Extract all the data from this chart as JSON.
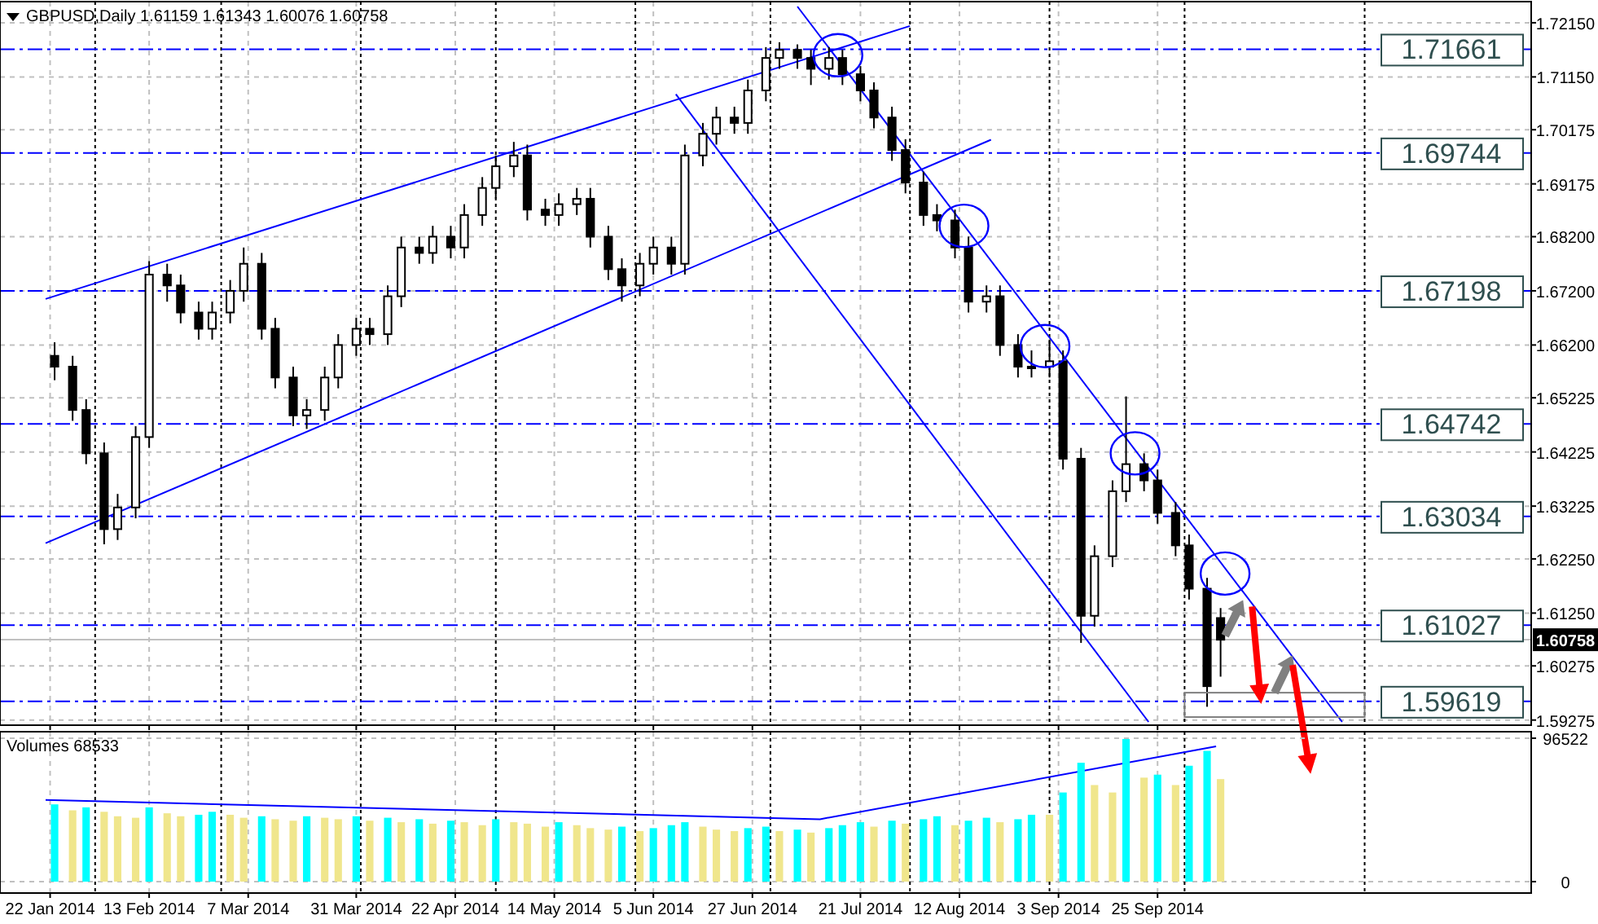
{
  "chart_data": [
    {
      "type": "candlestick",
      "title": "GBPUSD,Daily 1.61159 1.61343 1.60076 1.60758",
      "color": "#000000",
      "grid": true,
      "tick_labels": "y",
      "xlim": [
        "2014-01-21",
        "2014-12-17"
      ],
      "ylim": [
        1.5918,
        1.7254
      ],
      "xticks": [
        {
          "value": "2014-01-22",
          "label": null
        },
        {
          "value": "2014-02-13",
          "label": null
        },
        {
          "value": "2014-03-07",
          "label": null
        },
        {
          "value": "2014-03-31",
          "label": null
        },
        {
          "value": "2014-04-22",
          "label": null
        },
        {
          "value": "2014-05-14",
          "label": null
        },
        {
          "value": "2014-06-05",
          "label": null
        },
        {
          "value": "2014-06-27",
          "label": null
        },
        {
          "value": "2014-07-21",
          "label": null
        },
        {
          "value": "2014-08-12",
          "label": null
        },
        {
          "value": "2014-09-03",
          "label": null
        },
        {
          "value": "2014-09-25",
          "label": null
        }
      ],
      "yticks": [
        {
          "value": 1.7215,
          "label": "1.72150"
        },
        {
          "value": 1.7115,
          "label": "1.71150"
        },
        {
          "value": 1.70175,
          "label": "1.70175"
        },
        {
          "value": 1.69175,
          "label": "1.69175"
        },
        {
          "value": 1.682,
          "label": "1.68200"
        },
        {
          "value": 1.672,
          "label": "1.67200"
        },
        {
          "value": 1.662,
          "label": "1.66200"
        },
        {
          "value": 1.65225,
          "label": "1.65225"
        },
        {
          "value": 1.64225,
          "label": "1.64225"
        },
        {
          "value": 1.63225,
          "label": "1.63225"
        },
        {
          "value": 1.6225,
          "label": "1.62250"
        },
        {
          "value": 1.6125,
          "label": "1.61250"
        },
        {
          "value": 1.60275,
          "label": "1.60275"
        },
        {
          "value": 1.59275,
          "label": "1.59275"
        }
      ],
      "x": [
        "2014-01-23",
        "2014-01-27",
        "2014-01-30",
        "2014-02-03",
        "2014-02-06",
        "2014-02-10",
        "2014-02-13",
        "2014-02-17",
        "2014-02-20",
        "2014-02-24",
        "2014-02-27",
        "2014-03-03",
        "2014-03-06",
        "2014-03-10",
        "2014-03-13",
        "2014-03-17",
        "2014-03-20",
        "2014-03-24",
        "2014-03-27",
        "2014-03-31",
        "2014-04-03",
        "2014-04-07",
        "2014-04-10",
        "2014-04-14",
        "2014-04-17",
        "2014-04-21",
        "2014-04-24",
        "2014-04-28",
        "2014-05-01",
        "2014-05-05",
        "2014-05-08",
        "2014-05-12",
        "2014-05-15",
        "2014-05-19",
        "2014-05-22",
        "2014-05-26",
        "2014-05-29",
        "2014-06-02",
        "2014-06-05",
        "2014-06-09",
        "2014-06-12",
        "2014-06-16",
        "2014-06-19",
        "2014-06-23",
        "2014-06-26",
        "2014-06-30",
        "2014-07-03",
        "2014-07-07",
        "2014-07-10",
        "2014-07-14",
        "2014-07-17",
        "2014-07-21",
        "2014-07-24",
        "2014-07-28",
        "2014-07-31",
        "2014-08-04",
        "2014-08-07",
        "2014-08-11",
        "2014-08-14",
        "2014-08-18",
        "2014-08-21",
        "2014-08-25",
        "2014-08-28",
        "2014-09-01",
        "2014-09-04",
        "2014-09-08",
        "2014-09-11",
        "2014-09-15",
        "2014-09-18",
        "2014-09-22",
        "2014-09-25",
        "2014-09-29",
        "2014-10-02",
        "2014-10-06",
        "2014-10-09"
      ],
      "ohlc": [
        [
          1.66,
          1.6625,
          1.6555,
          1.658
        ],
        [
          1.658,
          1.66,
          1.648,
          1.65
        ],
        [
          1.65,
          1.652,
          1.64,
          1.642
        ],
        [
          1.642,
          1.644,
          1.6252,
          1.628
        ],
        [
          1.628,
          1.6345,
          1.626,
          1.632
        ],
        [
          1.632,
          1.647,
          1.63,
          1.645
        ],
        [
          1.645,
          1.6775,
          1.643,
          1.675
        ],
        [
          1.675,
          1.677,
          1.67,
          1.673
        ],
        [
          1.673,
          1.675,
          1.666,
          1.668
        ],
        [
          1.668,
          1.67,
          1.663,
          1.665
        ],
        [
          1.665,
          1.67,
          1.663,
          1.668
        ],
        [
          1.668,
          1.674,
          1.666,
          1.672
        ],
        [
          1.672,
          1.68,
          1.67,
          1.677
        ],
        [
          1.677,
          1.679,
          1.663,
          1.665
        ],
        [
          1.665,
          1.667,
          1.654,
          1.656
        ],
        [
          1.656,
          1.658,
          1.647,
          1.649
        ],
        [
          1.649,
          1.652,
          1.6465,
          1.65
        ],
        [
          1.65,
          1.658,
          1.648,
          1.656
        ],
        [
          1.656,
          1.664,
          1.654,
          1.662
        ],
        [
          1.662,
          1.667,
          1.66,
          1.665
        ],
        [
          1.665,
          1.667,
          1.662,
          1.664
        ],
        [
          1.664,
          1.673,
          1.662,
          1.671
        ],
        [
          1.671,
          1.682,
          1.669,
          1.68
        ],
        [
          1.68,
          1.682,
          1.677,
          1.679
        ],
        [
          1.679,
          1.684,
          1.677,
          1.682
        ],
        [
          1.682,
          1.684,
          1.678,
          1.68
        ],
        [
          1.68,
          1.688,
          1.678,
          1.686
        ],
        [
          1.686,
          1.693,
          1.684,
          1.691
        ],
        [
          1.691,
          1.697,
          1.689,
          1.695
        ],
        [
          1.695,
          1.6995,
          1.693,
          1.697
        ],
        [
          1.697,
          1.699,
          1.685,
          1.687
        ],
        [
          1.687,
          1.689,
          1.684,
          1.686
        ],
        [
          1.686,
          1.69,
          1.684,
          1.688
        ],
        [
          1.688,
          1.691,
          1.686,
          1.689
        ],
        [
          1.689,
          1.691,
          1.68,
          1.682
        ],
        [
          1.682,
          1.684,
          1.674,
          1.676
        ],
        [
          1.676,
          1.678,
          1.67,
          1.673
        ],
        [
          1.673,
          1.679,
          1.671,
          1.677
        ],
        [
          1.677,
          1.682,
          1.675,
          1.68
        ],
        [
          1.68,
          1.682,
          1.675,
          1.677
        ],
        [
          1.677,
          1.699,
          1.675,
          1.697
        ],
        [
          1.697,
          1.703,
          1.695,
          1.701
        ],
        [
          1.701,
          1.706,
          1.699,
          1.704
        ],
        [
          1.704,
          1.706,
          1.701,
          1.703
        ],
        [
          1.703,
          1.711,
          1.701,
          1.709
        ],
        [
          1.709,
          1.717,
          1.707,
          1.715
        ],
        [
          1.715,
          1.7179,
          1.713,
          1.7165
        ],
        [
          1.7165,
          1.7175,
          1.713,
          1.715
        ],
        [
          1.715,
          1.7165,
          1.71,
          1.713
        ],
        [
          1.713,
          1.717,
          1.711,
          1.715
        ],
        [
          1.715,
          1.7165,
          1.71,
          1.712
        ],
        [
          1.712,
          1.7135,
          1.707,
          1.709
        ],
        [
          1.709,
          1.7105,
          1.702,
          1.704
        ],
        [
          1.704,
          1.706,
          1.696,
          1.698
        ],
        [
          1.698,
          1.7,
          1.69,
          1.692
        ],
        [
          1.692,
          1.694,
          1.684,
          1.686
        ],
        [
          1.686,
          1.688,
          1.683,
          1.685
        ],
        [
          1.685,
          1.687,
          1.678,
          1.68
        ],
        [
          1.68,
          1.682,
          1.668,
          1.67
        ],
        [
          1.67,
          1.673,
          1.668,
          1.671
        ],
        [
          1.671,
          1.673,
          1.66,
          1.662
        ],
        [
          1.662,
          1.664,
          1.656,
          1.658
        ],
        [
          1.658,
          1.661,
          1.656,
          1.658
        ],
        [
          1.658,
          1.663,
          1.656,
          1.659
        ],
        [
          1.659,
          1.661,
          1.639,
          1.641
        ],
        [
          1.641,
          1.643,
          1.607,
          1.612
        ],
        [
          1.612,
          1.625,
          1.61,
          1.623
        ],
        [
          1.623,
          1.637,
          1.621,
          1.635
        ],
        [
          1.635,
          1.6525,
          1.633,
          1.64
        ],
        [
          1.64,
          1.642,
          1.635,
          1.637
        ],
        [
          1.637,
          1.639,
          1.629,
          1.631
        ],
        [
          1.631,
          1.633,
          1.623,
          1.625
        ],
        [
          1.625,
          1.627,
          1.615,
          1.617
        ],
        [
          1.617,
          1.619,
          1.5952,
          1.599
        ],
        [
          1.61159,
          1.61343,
          1.60076,
          1.60758
        ]
      ],
      "series": [
        {
          "type": "line",
          "color": "#0000ff",
          "x": [
            "2014-01-21",
            "2014-08-01"
          ],
          "values": [
            1.6705,
            1.7209
          ]
        },
        {
          "type": "line",
          "color": "#0000ff",
          "x": [
            "2014-01-21",
            "2014-08-19"
          ],
          "values": [
            1.6254,
            1.6999
          ]
        },
        {
          "type": "line",
          "color": "#0000ff",
          "x": [
            "2014-07-07",
            "2014-11-05"
          ],
          "values": [
            1.7245,
            1.5924
          ]
        },
        {
          "type": "line",
          "color": "#0000ff",
          "x": [
            "2014-06-10",
            "2014-09-23"
          ],
          "values": [
            1.7083,
            1.5924
          ]
        }
      ],
      "ref_lines": [
        {
          "axis": "y",
          "value": 1.71661,
          "label": "1.71661",
          "color": "#0000ff",
          "line_style": "dashed"
        },
        {
          "axis": "y",
          "value": 1.69744,
          "label": "1.69744",
          "color": "#0000ff",
          "line_style": "dashed"
        },
        {
          "axis": "y",
          "value": 1.67198,
          "label": "1.67198",
          "color": "#0000ff",
          "line_style": "dashed"
        },
        {
          "axis": "y",
          "value": 1.64742,
          "label": "1.64742",
          "color": "#0000ff",
          "line_style": "dashed"
        },
        {
          "axis": "y",
          "value": 1.63034,
          "label": "1.63034",
          "color": "#0000ff",
          "line_style": "dashed"
        },
        {
          "axis": "y",
          "value": 1.61027,
          "label": "1.61027",
          "color": "#0000ff",
          "line_style": "dashed"
        },
        {
          "axis": "y",
          "value": 1.59619,
          "label": "1.59619",
          "color": "#0000ff",
          "line_style": "dashed"
        },
        {
          "axis": "y",
          "value": 1.60758,
          "label": "1.60758",
          "color": "#c0c0c0",
          "line_style": "solid"
        },
        {
          "axis": "x",
          "value": "2014-02-01",
          "color": "#000000",
          "line_style": "dotted"
        },
        {
          "axis": "x",
          "value": "2014-03-01",
          "color": "#000000",
          "line_style": "dotted"
        },
        {
          "axis": "x",
          "value": "2014-04-01",
          "color": "#000000",
          "line_style": "dotted"
        },
        {
          "axis": "x",
          "value": "2014-05-01",
          "color": "#000000",
          "line_style": "dotted"
        },
        {
          "axis": "x",
          "value": "2014-06-01",
          "color": "#000000",
          "line_style": "dotted"
        },
        {
          "axis": "x",
          "value": "2014-07-01",
          "color": "#000000",
          "line_style": "dotted"
        },
        {
          "axis": "x",
          "value": "2014-08-01",
          "color": "#000000",
          "line_style": "dotted"
        },
        {
          "axis": "x",
          "value": "2014-09-01",
          "color": "#000000",
          "line_style": "dotted"
        },
        {
          "axis": "x",
          "value": "2014-10-01",
          "color": "#000000",
          "line_style": "dotted"
        },
        {
          "axis": "x",
          "value": "2014-11-10",
          "color": "#000000",
          "line_style": "dotted"
        }
      ]
    },
    {
      "type": "bar",
      "title": "Volumes 68533",
      "grid": true,
      "xlim": [
        "2014-01-21",
        "2014-12-17"
      ],
      "ylim": [
        0,
        96522
      ],
      "yticks": [
        0,
        96522
      ],
      "xticks": [
        {
          "value": "2014-01-22",
          "label": "22 Jan 2014"
        },
        {
          "value": "2014-02-13",
          "label": "13 Feb 2014"
        },
        {
          "value": "2014-03-07",
          "label": "7 Mar 2014"
        },
        {
          "value": "2014-03-31",
          "label": "31 Mar 2014"
        },
        {
          "value": "2014-04-22",
          "label": "22 Apr 2014"
        },
        {
          "value": "2014-05-14",
          "label": "14 May 2014"
        },
        {
          "value": "2014-06-05",
          "label": "5 Jun 2014"
        },
        {
          "value": "2014-06-27",
          "label": "27 Jun 2014"
        },
        {
          "value": "2014-07-21",
          "label": "21 Jul 2014"
        },
        {
          "value": "2014-08-12",
          "label": "12 Aug 2014"
        },
        {
          "value": "2014-09-03",
          "label": "3 Sep 2014"
        },
        {
          "value": "2014-09-25",
          "label": "25 Sep 2014"
        }
      ],
      "x": [
        "2014-01-23",
        "2014-01-27",
        "2014-01-30",
        "2014-02-03",
        "2014-02-06",
        "2014-02-10",
        "2014-02-13",
        "2014-02-17",
        "2014-02-20",
        "2014-02-24",
        "2014-02-27",
        "2014-03-03",
        "2014-03-06",
        "2014-03-10",
        "2014-03-13",
        "2014-03-17",
        "2014-03-20",
        "2014-03-24",
        "2014-03-27",
        "2014-03-31",
        "2014-04-03",
        "2014-04-07",
        "2014-04-10",
        "2014-04-14",
        "2014-04-17",
        "2014-04-21",
        "2014-04-24",
        "2014-04-28",
        "2014-05-01",
        "2014-05-05",
        "2014-05-08",
        "2014-05-12",
        "2014-05-15",
        "2014-05-19",
        "2014-05-22",
        "2014-05-26",
        "2014-05-29",
        "2014-06-02",
        "2014-06-05",
        "2014-06-09",
        "2014-06-12",
        "2014-06-16",
        "2014-06-19",
        "2014-06-23",
        "2014-06-26",
        "2014-06-30",
        "2014-07-03",
        "2014-07-07",
        "2014-07-10",
        "2014-07-14",
        "2014-07-17",
        "2014-07-21",
        "2014-07-24",
        "2014-07-28",
        "2014-07-31",
        "2014-08-04",
        "2014-08-07",
        "2014-08-11",
        "2014-08-14",
        "2014-08-18",
        "2014-08-21",
        "2014-08-25",
        "2014-08-28",
        "2014-09-01",
        "2014-09-04",
        "2014-09-08",
        "2014-09-11",
        "2014-09-15",
        "2014-09-18",
        "2014-09-22",
        "2014-09-25",
        "2014-09-29",
        "2014-10-02",
        "2014-10-06",
        "2014-10-09"
      ],
      "values": [
        52000,
        48000,
        50000,
        47000,
        44000,
        43000,
        50000,
        46000,
        44000,
        45000,
        47000,
        45000,
        43000,
        44000,
        42000,
        41000,
        44000,
        43000,
        42000,
        44000,
        41000,
        43000,
        40000,
        42000,
        39000,
        41000,
        40000,
        38000,
        42000,
        40000,
        39000,
        37000,
        40000,
        38000,
        36000,
        35000,
        37000,
        34000,
        36000,
        38000,
        40000,
        37000,
        35000,
        34000,
        36000,
        37000,
        34000,
        35000,
        33000,
        36000,
        38000,
        40000,
        37000,
        41000,
        39000,
        42000,
        44000,
        38000,
        41000,
        43000,
        40000,
        42000,
        45000,
        45000,
        60000,
        80000,
        65000,
        60000,
        96000,
        70000,
        72000,
        65000,
        78000,
        88000,
        69000
      ],
      "colors": [
        "#00ffff",
        "#f0e68c",
        "#00ffff",
        "#f0e68c",
        "#f0e68c",
        "#f0e68c",
        "#00ffff",
        "#f0e68c",
        "#f0e68c",
        "#00ffff",
        "#00ffff",
        "#f0e68c",
        "#f0e68c",
        "#00ffff",
        "#f0e68c",
        "#f0e68c",
        "#00ffff",
        "#f0e68c",
        "#f0e68c",
        "#00ffff",
        "#f0e68c",
        "#00ffff",
        "#f0e68c",
        "#00ffff",
        "#f0e68c",
        "#00ffff",
        "#f0e68c",
        "#f0e68c",
        "#00ffff",
        "#f0e68c",
        "#f0e68c",
        "#f0e68c",
        "#00ffff",
        "#f0e68c",
        "#f0e68c",
        "#f0e68c",
        "#00ffff",
        "#f0e68c",
        "#00ffff",
        "#00ffff",
        "#00ffff",
        "#f0e68c",
        "#f0e68c",
        "#f0e68c",
        "#00ffff",
        "#00ffff",
        "#f0e68c",
        "#00ffff",
        "#f0e68c",
        "#00ffff",
        "#00ffff",
        "#00ffff",
        "#f0e68c",
        "#00ffff",
        "#f0e68c",
        "#00ffff",
        "#00ffff",
        "#f0e68c",
        "#00ffff",
        "#00ffff",
        "#f0e68c",
        "#00ffff",
        "#00ffff",
        "#f0e68c",
        "#00ffff",
        "#00ffff",
        "#f0e68c",
        "#f0e68c",
        "#00ffff",
        "#f0e68c",
        "#00ffff",
        "#f0e68c",
        "#00ffff",
        "#00ffff",
        "#f0e68c"
      ],
      "series": [
        {
          "type": "line",
          "color": "#0000ff",
          "x": [
            "2014-01-21",
            "2014-07-12",
            "2014-10-08"
          ],
          "values": [
            55000,
            42000,
            91000
          ]
        }
      ],
      "ref_lines": [
        {
          "axis": "x",
          "value": "2014-02-01",
          "color": "#000000",
          "line_style": "dotted"
        },
        {
          "axis": "x",
          "value": "2014-03-01",
          "color": "#000000",
          "line_style": "dotted"
        },
        {
          "axis": "x",
          "value": "2014-04-01",
          "color": "#000000",
          "line_style": "dotted"
        },
        {
          "axis": "x",
          "value": "2014-05-01",
          "color": "#000000",
          "line_style": "dotted"
        },
        {
          "axis": "x",
          "value": "2014-06-01",
          "color": "#000000",
          "line_style": "dotted"
        },
        {
          "axis": "x",
          "value": "2014-07-01",
          "color": "#000000",
          "line_style": "dotted"
        },
        {
          "axis": "x",
          "value": "2014-08-01",
          "color": "#000000",
          "line_style": "dotted"
        },
        {
          "axis": "x",
          "value": "2014-09-01",
          "color": "#000000",
          "line_style": "dotted"
        },
        {
          "axis": "x",
          "value": "2014-10-01",
          "color": "#000000",
          "line_style": "dotted"
        },
        {
          "axis": "x",
          "value": "2014-11-10",
          "color": "#000000",
          "line_style": "dotted"
        }
      ]
    }
  ]
}
